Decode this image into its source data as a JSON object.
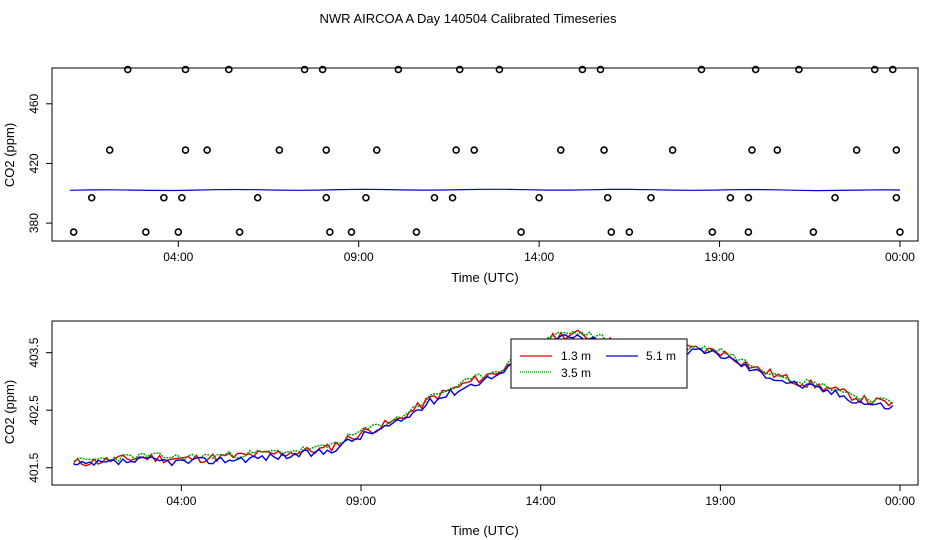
{
  "title": "NWR AIRCOA A  Day 140504  Calibrated Timeseries",
  "colors": {
    "c13": "#e00000",
    "c35": "#009900",
    "c51": "#0000dd",
    "axis": "#000000"
  },
  "chart_data": [
    {
      "type": "scatter",
      "xlabel": "Time (UTC)",
      "ylabel": "CO2 (ppm)",
      "x_ticks": [
        "04:00",
        "09:00",
        "14:00",
        "19:00",
        "00:00"
      ],
      "y_ticks": [
        "380",
        "420",
        "460"
      ],
      "xlim": [
        0.5,
        24.5
      ],
      "ylim": [
        368,
        484
      ],
      "x_tick_hours": [
        4,
        9,
        14,
        19,
        24
      ],
      "y_tick_values": [
        380,
        420,
        460
      ],
      "points": [
        [
          1.1,
          374
        ],
        [
          1.6,
          397
        ],
        [
          2.1,
          429
        ],
        [
          2.6,
          483
        ],
        [
          3.1,
          374
        ],
        [
          3.6,
          397
        ],
        [
          4.0,
          374
        ],
        [
          4.1,
          397
        ],
        [
          4.2,
          429
        ],
        [
          4.2,
          483
        ],
        [
          4.8,
          429
        ],
        [
          5.4,
          483
        ],
        [
          5.7,
          374
        ],
        [
          6.2,
          397
        ],
        [
          6.8,
          429
        ],
        [
          7.5,
          483
        ],
        [
          8.0,
          483
        ],
        [
          8.1,
          429
        ],
        [
          8.1,
          397
        ],
        [
          8.2,
          374
        ],
        [
          8.8,
          374
        ],
        [
          9.2,
          397
        ],
        [
          9.5,
          429
        ],
        [
          10.1,
          483
        ],
        [
          10.6,
          374
        ],
        [
          11.1,
          397
        ],
        [
          11.6,
          397
        ],
        [
          11.7,
          429
        ],
        [
          11.8,
          483
        ],
        [
          12.2,
          429
        ],
        [
          12.9,
          483
        ],
        [
          13.5,
          374
        ],
        [
          14.0,
          397
        ],
        [
          14.6,
          429
        ],
        [
          15.2,
          483
        ],
        [
          15.7,
          483
        ],
        [
          15.8,
          429
        ],
        [
          15.9,
          397
        ],
        [
          16.0,
          374
        ],
        [
          16.5,
          374
        ],
        [
          17.1,
          397
        ],
        [
          17.7,
          429
        ],
        [
          18.5,
          483
        ],
        [
          18.8,
          374
        ],
        [
          19.3,
          397
        ],
        [
          19.8,
          397
        ],
        [
          19.8,
          374
        ],
        [
          19.9,
          429
        ],
        [
          20.0,
          483
        ],
        [
          20.6,
          429
        ],
        [
          21.2,
          483
        ],
        [
          21.6,
          374
        ],
        [
          22.2,
          397
        ],
        [
          22.8,
          429
        ],
        [
          23.3,
          483
        ],
        [
          23.8,
          483
        ],
        [
          23.9,
          429
        ],
        [
          23.9,
          397
        ],
        [
          24.0,
          374
        ]
      ],
      "series": [
        {
          "values_start": 402.0,
          "values_end": 402.4,
          "x_start": 1.0,
          "x_end": 24.0
        }
      ]
    },
    {
      "type": "line",
      "xlabel": "Time (UTC)",
      "ylabel": "CO2 (ppm)",
      "x_ticks": [
        "04:00",
        "09:00",
        "14:00",
        "19:00",
        "00:00"
      ],
      "y_ticks": [
        "401.5",
        "402.5",
        "403.5"
      ],
      "xlim": [
        0.4,
        24.5
      ],
      "ylim": [
        401.2,
        404.05
      ],
      "x_tick_hours": [
        4,
        9,
        14,
        19,
        24
      ],
      "y_tick_values": [
        401.5,
        402.5,
        403.5
      ],
      "legend": {
        "position": "top-center",
        "entries": [
          "1.3 m",
          "3.5 m",
          "5.1 m"
        ]
      },
      "anchors": {
        "x": [
          1.0,
          2.0,
          3.0,
          4.0,
          5.0,
          6.0,
          7.0,
          8.0,
          9.0,
          10.0,
          11.0,
          12.0,
          13.0,
          13.5,
          14.0,
          14.5,
          15.0,
          15.5,
          16.0,
          16.5,
          17.0,
          18.0,
          19.0,
          20.0,
          21.0,
          22.0,
          23.0,
          23.8
        ],
        "y": [
          401.58,
          401.63,
          401.68,
          401.65,
          401.68,
          401.72,
          401.76,
          401.82,
          402.1,
          402.32,
          402.72,
          402.98,
          403.22,
          403.48,
          403.66,
          403.8,
          403.82,
          403.76,
          403.68,
          403.5,
          403.5,
          403.58,
          403.52,
          403.22,
          403.02,
          402.88,
          402.68,
          402.6
        ]
      },
      "series": [
        {
          "name": "1.3 m",
          "offset": 0.0,
          "noise": 0.08,
          "seed": 11
        },
        {
          "name": "3.5 m",
          "offset": 0.03,
          "noise": 0.06,
          "seed": 23
        },
        {
          "name": "5.1 m",
          "offset": -0.05,
          "noise": 0.07,
          "seed": 37
        }
      ]
    }
  ]
}
